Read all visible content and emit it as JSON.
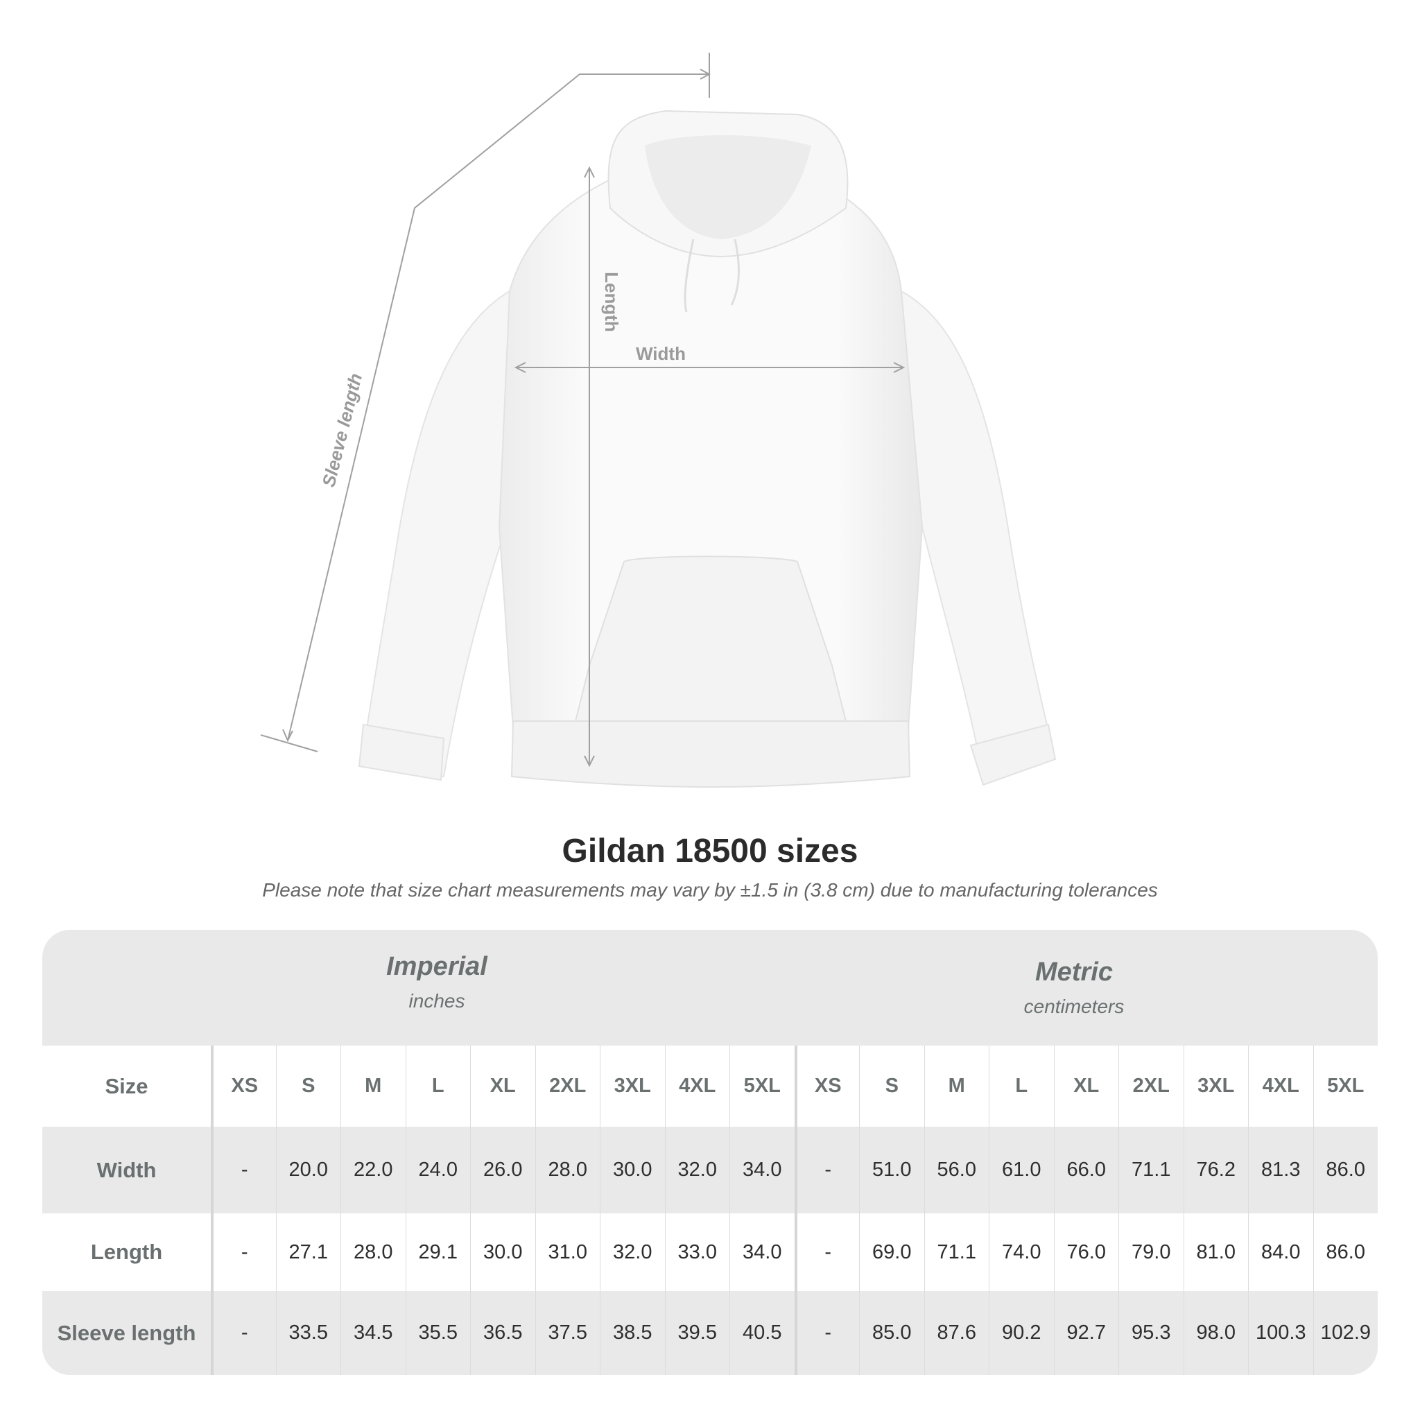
{
  "diagram": {
    "labels": {
      "length": "Length",
      "width": "Width",
      "sleeve": "Sleeve length"
    }
  },
  "title": "Gildan 18500 sizes",
  "note": "Please note that size chart measurements may vary by ±1.5 in (3.8 cm) due to manufacturing tolerances",
  "table": {
    "imperial": {
      "name": "Imperial",
      "unit": "inches"
    },
    "metric": {
      "name": "Metric",
      "unit": "centimeters"
    },
    "size_label": "Size",
    "sizes": [
      "XS",
      "S",
      "M",
      "L",
      "XL",
      "2XL",
      "3XL",
      "4XL",
      "5XL"
    ],
    "rows": [
      {
        "label": "Width",
        "imperial": [
          "-",
          "20.0",
          "22.0",
          "24.0",
          "26.0",
          "28.0",
          "30.0",
          "32.0",
          "34.0"
        ],
        "metric": [
          "-",
          "51.0",
          "56.0",
          "61.0",
          "66.0",
          "71.1",
          "76.2",
          "81.3",
          "86.0"
        ]
      },
      {
        "label": "Length",
        "imperial": [
          "-",
          "27.1",
          "28.0",
          "29.1",
          "30.0",
          "31.0",
          "32.0",
          "33.0",
          "34.0"
        ],
        "metric": [
          "-",
          "69.0",
          "71.1",
          "74.0",
          "76.0",
          "79.0",
          "81.0",
          "84.0",
          "86.0"
        ]
      },
      {
        "label": "Sleeve length",
        "imperial": [
          "-",
          "33.5",
          "34.5",
          "35.5",
          "36.5",
          "37.5",
          "38.5",
          "39.5",
          "40.5"
        ],
        "metric": [
          "-",
          "85.0",
          "87.6",
          "90.2",
          "92.7",
          "95.3",
          "98.0",
          "100.3",
          "102.9"
        ]
      }
    ]
  },
  "colors": {
    "header_bg": "#e9e9e9",
    "label_text": "#6a7070",
    "value_text": "#2e2e2e",
    "measure_line": "#a0a0a0"
  }
}
